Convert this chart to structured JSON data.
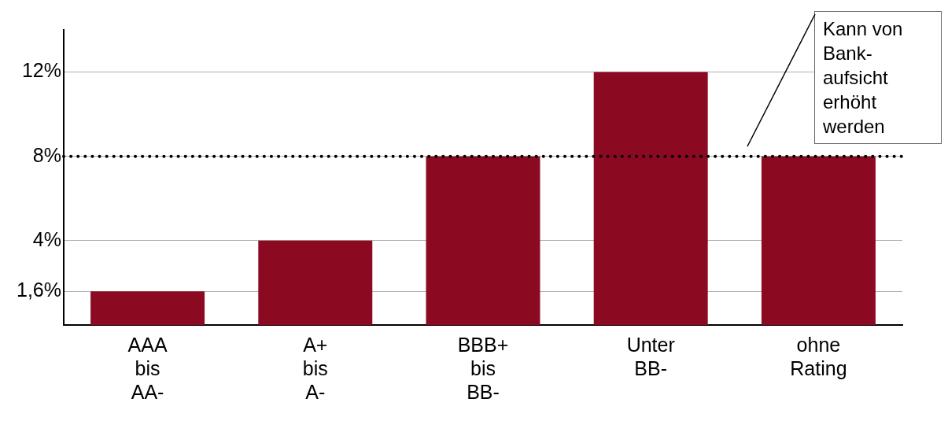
{
  "chart_data": {
    "type": "bar",
    "categories": [
      "AAA bis AA-",
      "A+ bis A-",
      "BBB+ bis BB-",
      "Unter BB-",
      "ohne Rating"
    ],
    "values": [
      1.6,
      4,
      8,
      12,
      8
    ],
    "color": "#8b0a22",
    "ylim": [
      0,
      14
    ],
    "yticks": [
      {
        "value": 1.6,
        "label": "1,6%"
      },
      {
        "value": 4,
        "label": "4%"
      },
      {
        "value": 8,
        "label": "8%"
      },
      {
        "value": 12,
        "label": "12%"
      }
    ],
    "grid": "y",
    "legend": false,
    "ref_lines": [
      {
        "axis": "y",
        "value": 8,
        "line_style": "dotted",
        "color": "#000000"
      }
    ],
    "annotations": [
      "Kann von Bank-aufsicht erhöht werden"
    ]
  }
}
